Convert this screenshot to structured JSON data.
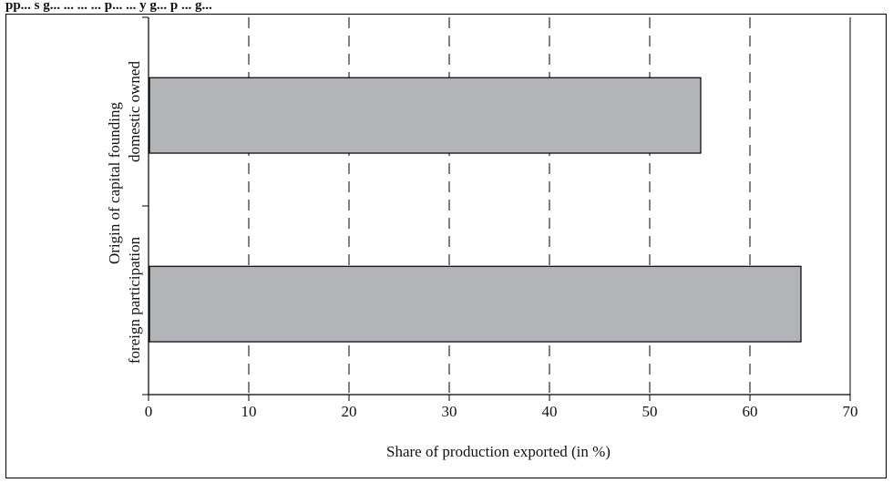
{
  "page": {
    "title": "pp... s g... ... ... ... p... ... y g... p ... g..."
  },
  "chart_data": {
    "type": "bar",
    "orientation": "horizontal",
    "title": "",
    "xlabel": "Share of production exported (in %)",
    "ylabel_line1": "Origin of capital founding",
    "categories": [
      "domestic owned",
      "foreign participation"
    ],
    "values": [
      55,
      65
    ],
    "xlim": [
      0,
      70
    ],
    "xticks": [
      0,
      10,
      20,
      30,
      40,
      50,
      60,
      70
    ],
    "grid": "vertical dashed",
    "bar_color": "#b3b4b8",
    "bar_edge_color": "#000000"
  }
}
